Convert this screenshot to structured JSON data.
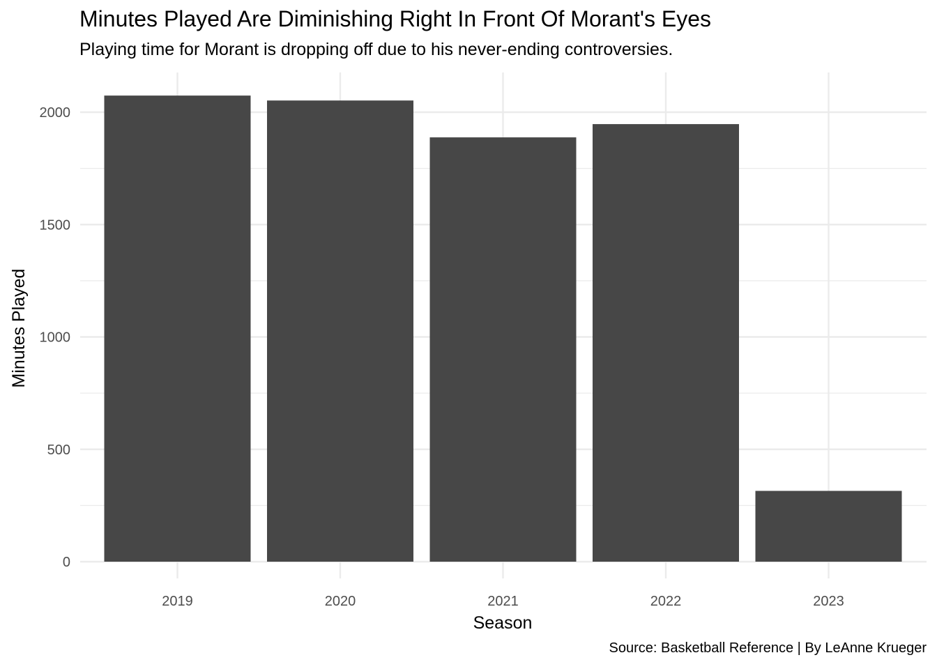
{
  "chart_data": {
    "type": "bar",
    "title": "Minutes Played Are Diminishing Right In Front Of Morant's Eyes",
    "subtitle": "Playing time for Morant is dropping off due to his never-ending controversies.",
    "caption": "Source: Basketball Reference | By LeAnne Krueger",
    "xlabel": "Season",
    "ylabel": "Minutes Played",
    "categories": [
      "2019",
      "2020",
      "2021",
      "2022",
      "2023"
    ],
    "values": [
      2074,
      2052,
      1888,
      1947,
      315
    ],
    "ylim": [
      0,
      2150
    ],
    "yticks": [
      0,
      500,
      1000,
      1500,
      2000
    ],
    "grid": true,
    "bar_color": "#474747",
    "grid_color": "#ebebeb"
  }
}
